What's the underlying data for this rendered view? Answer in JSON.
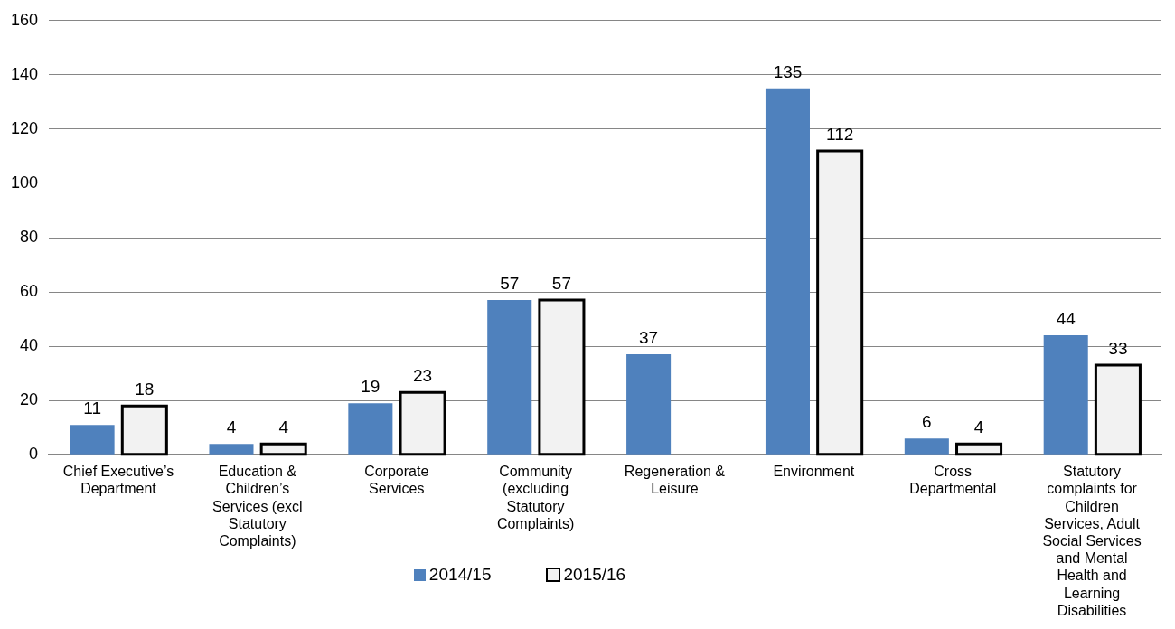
{
  "chart_data": {
    "type": "bar",
    "categories": [
      "Chief Executive’s Department",
      "Education & Children’s Services (excl Statutory Complaints)",
      "Corporate Services",
      "Community (excluding Statutory Complaints)",
      "Regeneration & Leisure",
      "Environment",
      "Cross Departmental",
      "Statutory complaints for Children Services, Adult Social Services and Mental Health and Learning Disabilities"
    ],
    "series": [
      {
        "name": "2014/15",
        "color": "#4f81bd",
        "values": [
          11,
          4,
          19,
          57,
          37,
          135,
          6,
          44
        ]
      },
      {
        "name": "2015/16",
        "color": "#f2f2f2",
        "values": [
          18,
          4,
          23,
          57,
          null,
          112,
          4,
          33
        ]
      }
    ],
    "ylim": [
      0,
      160
    ],
    "yticks": [
      0,
      20,
      40,
      60,
      80,
      100,
      120,
      140,
      160
    ],
    "grid": "y",
    "legend": "bottom",
    "data_labels": true
  }
}
